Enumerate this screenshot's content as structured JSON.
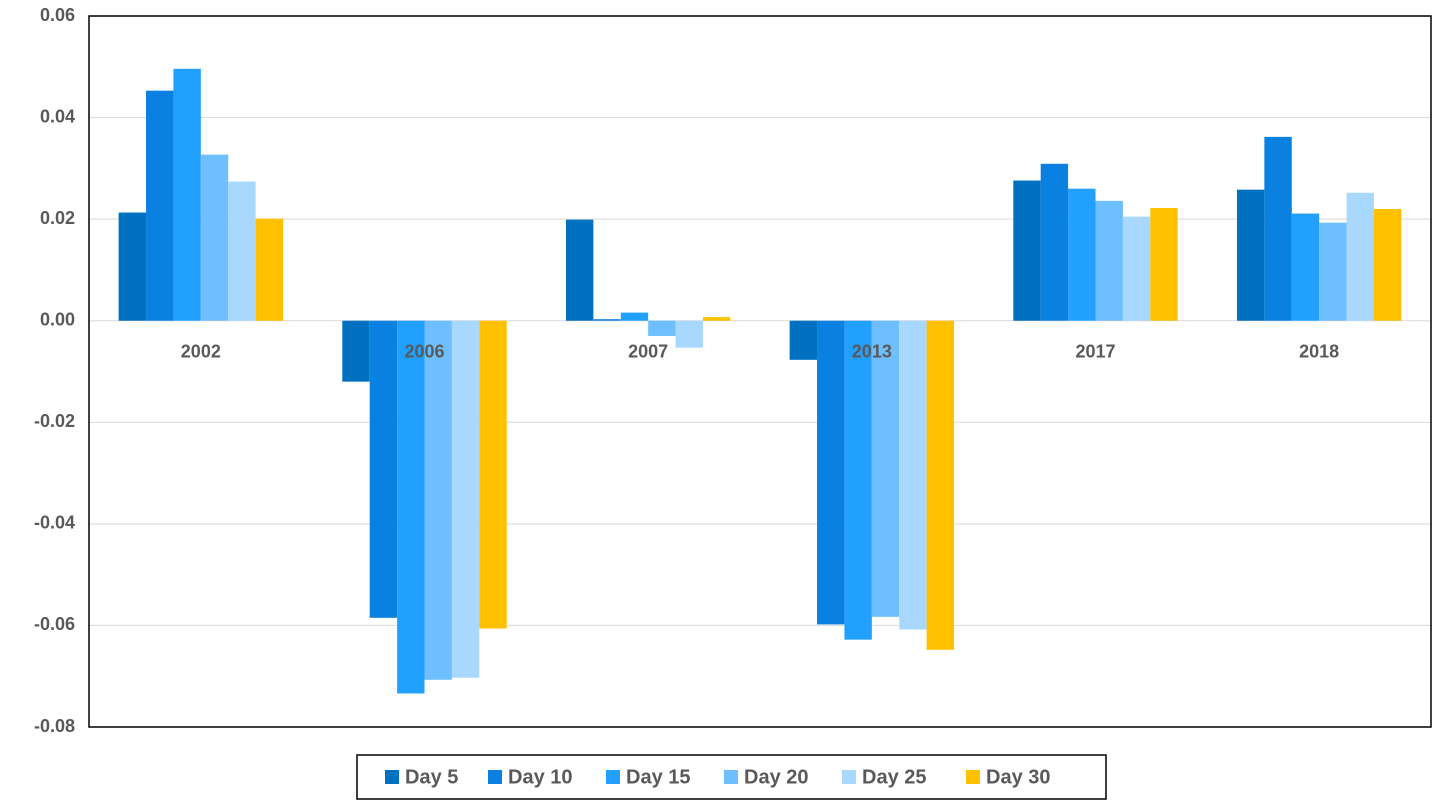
{
  "chart_data": {
    "type": "bar",
    "categories": [
      "2002",
      "2006",
      "2007",
      "2013",
      "2017",
      "2018"
    ],
    "series": [
      {
        "name": "Day 5",
        "color": "#0070c0",
        "values": [
          0.0213,
          -0.012,
          0.0199,
          -0.0077,
          0.0276,
          0.0258
        ]
      },
      {
        "name": "Day 10",
        "color": "#0a80e0",
        "values": [
          0.0453,
          -0.0585,
          0.0003,
          -0.0598,
          0.0309,
          0.0362
        ]
      },
      {
        "name": "Day 15",
        "color": "#21a0ff",
        "values": [
          0.0496,
          -0.0734,
          0.0016,
          -0.0628,
          0.026,
          0.0211
        ]
      },
      {
        "name": "Day 20",
        "color": "#6dbfff",
        "values": [
          0.0327,
          -0.0707,
          -0.003,
          -0.0583,
          0.0236,
          0.0193
        ]
      },
      {
        "name": "Day 25",
        "color": "#a9d8ff",
        "values": [
          0.0274,
          -0.0703,
          -0.0053,
          -0.0608,
          0.0205,
          0.0252
        ]
      },
      {
        "name": "Day 30",
        "color": "#ffc000",
        "values": [
          0.0201,
          -0.0606,
          0.0007,
          -0.0648,
          0.0222,
          0.022
        ]
      }
    ],
    "ylim": [
      -0.08,
      0.06
    ],
    "yticks": [
      -0.08,
      -0.06,
      -0.04,
      -0.02,
      {
        "value": 0,
        "label": "0.00"
      },
      0.02,
      0.04,
      0.06
    ],
    "grid": true,
    "legend": "bottom"
  }
}
